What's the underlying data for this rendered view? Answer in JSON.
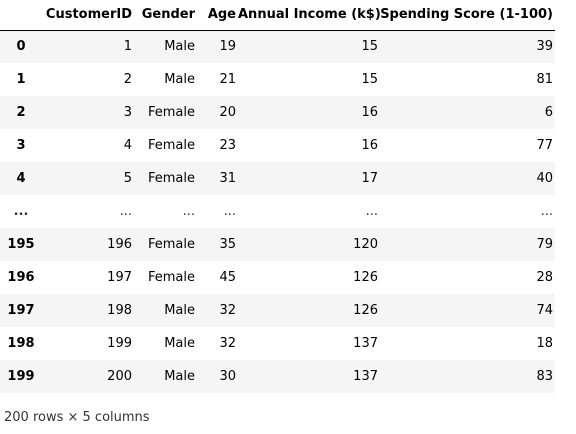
{
  "table": {
    "columns": [
      "",
      "CustomerID",
      "Gender",
      "Age",
      "Annual Income (k$)",
      "Spending Score (1-100)"
    ],
    "rows": [
      {
        "index": "0",
        "customer_id": "1",
        "gender": "Male",
        "age": "19",
        "income": "15",
        "score": "39"
      },
      {
        "index": "1",
        "customer_id": "2",
        "gender": "Male",
        "age": "21",
        "income": "15",
        "score": "81"
      },
      {
        "index": "2",
        "customer_id": "3",
        "gender": "Female",
        "age": "20",
        "income": "16",
        "score": "6"
      },
      {
        "index": "3",
        "customer_id": "4",
        "gender": "Female",
        "age": "23",
        "income": "16",
        "score": "77"
      },
      {
        "index": "4",
        "customer_id": "5",
        "gender": "Female",
        "age": "31",
        "income": "17",
        "score": "40"
      },
      {
        "index": "...",
        "customer_id": "...",
        "gender": "...",
        "age": "...",
        "income": "...",
        "score": "..."
      },
      {
        "index": "195",
        "customer_id": "196",
        "gender": "Female",
        "age": "35",
        "income": "120",
        "score": "79"
      },
      {
        "index": "196",
        "customer_id": "197",
        "gender": "Female",
        "age": "45",
        "income": "126",
        "score": "28"
      },
      {
        "index": "197",
        "customer_id": "198",
        "gender": "Male",
        "age": "32",
        "income": "126",
        "score": "74"
      },
      {
        "index": "198",
        "customer_id": "199",
        "gender": "Male",
        "age": "32",
        "income": "137",
        "score": "18"
      },
      {
        "index": "199",
        "customer_id": "200",
        "gender": "Male",
        "age": "30",
        "income": "137",
        "score": "83"
      }
    ]
  },
  "footer": {
    "shape_text": "200 rows × 5 columns"
  }
}
